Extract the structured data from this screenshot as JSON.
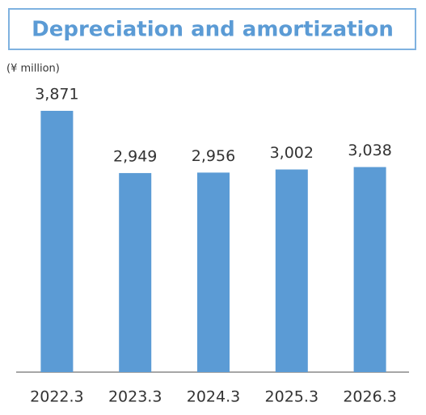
{
  "chart_data": {
    "type": "bar",
    "title": "Depreciation and amortization",
    "unit": "(¥ million)",
    "categories": [
      "2022.3",
      "2023.3",
      "2024.3",
      "2025.3",
      "2026.3"
    ],
    "values": [
      3871,
      2949,
      2956,
      3002,
      3038
    ],
    "value_labels": [
      "3,871",
      "2,949",
      "2,956",
      "3,002",
      "3,038"
    ],
    "color": "#5b9bd5"
  }
}
